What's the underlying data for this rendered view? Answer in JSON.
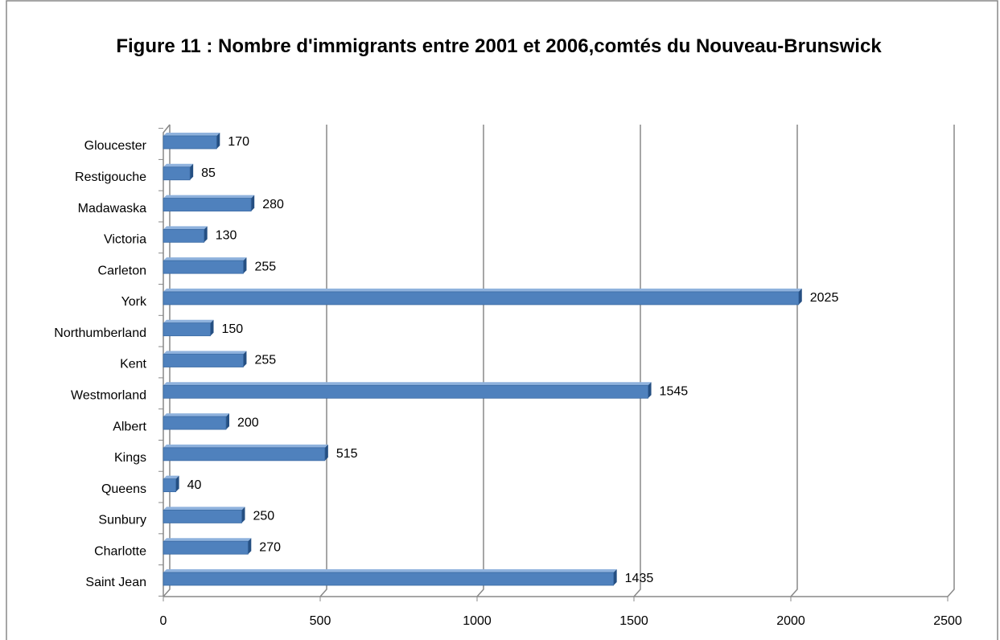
{
  "chart_data": {
    "type": "bar",
    "orientation": "horizontal",
    "title": "Figure 11 : Nombre d'immigrants entre 2001 et 2006,comtés du Nouveau-Brunswick",
    "categories": [
      "Gloucester",
      "Restigouche",
      "Madawaska",
      "Victoria",
      "Carleton",
      "York",
      "Northumberland",
      "Kent",
      "Westmorland",
      "Albert",
      "Kings",
      "Queens",
      "Sunbury",
      "Charlotte",
      "Saint Jean"
    ],
    "values": [
      170,
      85,
      280,
      130,
      255,
      2025,
      150,
      255,
      1545,
      200,
      515,
      40,
      250,
      270,
      1435
    ],
    "color": "#4f81bd",
    "xlim": [
      0,
      2500
    ],
    "xticks": [
      0,
      500,
      1000,
      1500,
      2000,
      2500
    ],
    "grid": true
  }
}
